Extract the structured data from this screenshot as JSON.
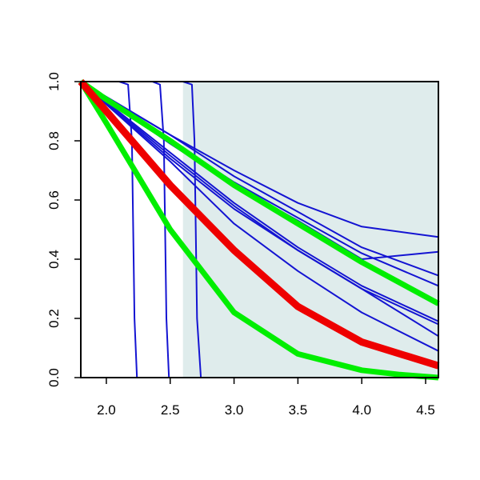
{
  "chart_data": {
    "type": "line",
    "title": "",
    "xlabel": "",
    "ylabel": "",
    "xlim": [
      1.8,
      4.6
    ],
    "ylim": [
      0.0,
      1.0
    ],
    "x_ticks": [
      2.0,
      2.5,
      3.0,
      3.5,
      4.0,
      4.5
    ],
    "x_tick_labels": [
      "2.0",
      "2.5",
      "3.0",
      "3.5",
      "4.0",
      "4.5"
    ],
    "y_ticks": [
      0.0,
      0.2,
      0.4,
      0.6,
      0.8,
      1.0
    ],
    "y_tick_labels": [
      "0.0",
      "0.2",
      "0.4",
      "0.6",
      "0.8",
      "1.0"
    ],
    "grid": false,
    "legend": "none",
    "shaded_region": {
      "x": [
        2.6,
        4.6
      ],
      "color": "#dfecec"
    },
    "colors": {
      "blue": "#1414d2",
      "green": "#00ee00",
      "red": "#ee0000"
    },
    "series": [
      {
        "color": "#1414d2",
        "width": 2,
        "x": [
          1.8,
          2.1,
          2.17,
          2.2,
          2.22,
          2.24,
          4.6
        ],
        "values": [
          1.0,
          1.0,
          0.99,
          0.8,
          0.2,
          0.0,
          0.0
        ]
      },
      {
        "color": "#1414d2",
        "width": 2,
        "x": [
          1.8,
          2.36,
          2.42,
          2.45,
          2.47,
          2.49,
          4.6
        ],
        "values": [
          1.0,
          1.0,
          0.99,
          0.8,
          0.2,
          0.0,
          0.0
        ]
      },
      {
        "color": "#1414d2",
        "width": 2,
        "x": [
          1.8,
          2.6,
          2.67,
          2.69,
          2.71,
          2.74,
          4.6
        ],
        "values": [
          1.0,
          1.0,
          0.99,
          0.8,
          0.2,
          0.0,
          0.0
        ]
      },
      {
        "color": "#1414d2",
        "width": 2,
        "x": [
          1.8,
          2.5,
          3.0,
          3.5,
          4.0,
          4.6
        ],
        "values": [
          1.0,
          0.82,
          0.7,
          0.59,
          0.51,
          0.475
        ]
      },
      {
        "color": "#1414d2",
        "width": 2,
        "x": [
          1.8,
          2.5,
          3.0,
          3.5,
          4.0,
          4.6
        ],
        "values": [
          1.0,
          0.8,
          0.66,
          0.54,
          0.42,
          0.31
        ]
      },
      {
        "color": "#1414d2",
        "width": 2,
        "x": [
          1.8,
          2.5,
          3.0,
          3.5,
          4.0,
          4.6
        ],
        "values": [
          1.0,
          0.82,
          0.68,
          0.56,
          0.44,
          0.345
        ]
      },
      {
        "color": "#1414d2",
        "width": 2,
        "x": [
          1.8,
          2.5,
          3.0,
          3.5,
          4.0,
          4.6
        ],
        "values": [
          1.0,
          0.79,
          0.65,
          0.53,
          0.4,
          0.425
        ]
      },
      {
        "color": "#1414d2",
        "width": 2,
        "x": [
          1.8,
          2.5,
          3.0,
          3.5,
          4.0,
          4.6
        ],
        "values": [
          1.0,
          0.76,
          0.59,
          0.44,
          0.31,
          0.19
        ]
      },
      {
        "color": "#1414d2",
        "width": 2,
        "x": [
          1.8,
          2.5,
          3.0,
          3.5,
          4.0,
          4.6
        ],
        "values": [
          1.0,
          0.74,
          0.57,
          0.43,
          0.3,
          0.18
        ]
      },
      {
        "color": "#1414d2",
        "width": 2,
        "x": [
          1.8,
          2.5,
          3.0,
          3.5,
          4.0,
          4.6
        ],
        "values": [
          1.0,
          0.75,
          0.58,
          0.43,
          0.3,
          0.14
        ]
      },
      {
        "color": "#1414d2",
        "width": 2,
        "x": [
          1.8,
          2.5,
          3.0,
          3.5,
          4.0,
          4.6
        ],
        "values": [
          1.0,
          0.73,
          0.52,
          0.36,
          0.22,
          0.09
        ]
      },
      {
        "color": "#00ee00",
        "width": 7,
        "x": [
          1.8,
          2.0,
          2.5,
          3.0,
          3.5,
          4.0,
          4.6
        ],
        "values": [
          1.0,
          0.94,
          0.8,
          0.65,
          0.52,
          0.39,
          0.25
        ]
      },
      {
        "color": "#00ee00",
        "width": 7,
        "x": [
          1.8,
          2.0,
          2.5,
          3.0,
          3.5,
          4.0,
          4.3,
          4.6
        ],
        "values": [
          1.0,
          0.86,
          0.5,
          0.22,
          0.08,
          0.025,
          0.01,
          0.0
        ]
      },
      {
        "color": "#ee0000",
        "width": 9,
        "x": [
          1.8,
          2.0,
          2.5,
          3.0,
          3.5,
          4.0,
          4.6
        ],
        "values": [
          1.0,
          0.9,
          0.65,
          0.43,
          0.24,
          0.12,
          0.04
        ]
      }
    ]
  }
}
